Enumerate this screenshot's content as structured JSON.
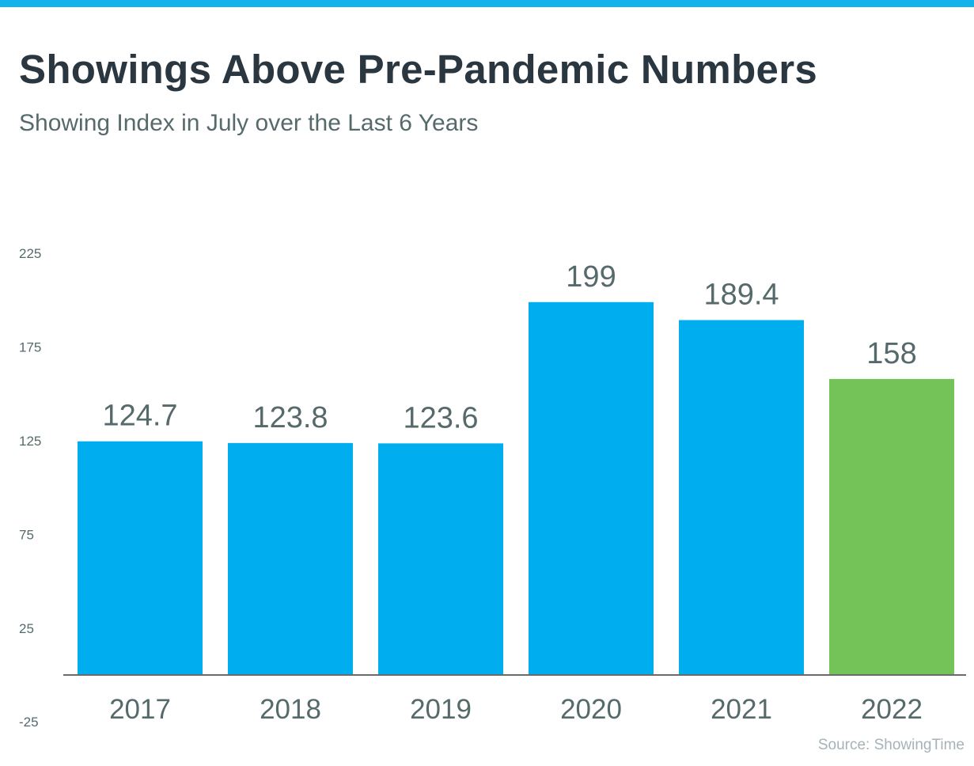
{
  "header": {
    "title": "Showings Above Pre-Pandemic Numbers",
    "subtitle": "Showing Index in July over the Last 6 Years"
  },
  "source": "Source: ShowingTime",
  "colors": {
    "stripe": "#12b2ec",
    "bar": "#00aeef",
    "highlight": "#74c358",
    "text": "#566a6c"
  },
  "chart_data": {
    "type": "bar",
    "title": "Showings Above Pre-Pandemic Numbers",
    "subtitle": "Showing Index in July over the Last 6 Years",
    "categories": [
      "2017",
      "2018",
      "2019",
      "2020",
      "2021",
      "2022"
    ],
    "values": [
      124.7,
      123.8,
      123.6,
      199,
      189.4,
      158
    ],
    "data_labels": [
      "124.7",
      "123.8",
      "123.6",
      "199",
      "189.4",
      "158"
    ],
    "bar_colors": [
      "#00aeef",
      "#00aeef",
      "#00aeef",
      "#00aeef",
      "#00aeef",
      "#74c358"
    ],
    "yticks": [
      -25,
      25,
      75,
      125,
      175,
      225
    ],
    "ylim": [
      -25,
      225
    ],
    "xlabel": "",
    "ylabel": "",
    "grid": false,
    "legend": "none"
  }
}
